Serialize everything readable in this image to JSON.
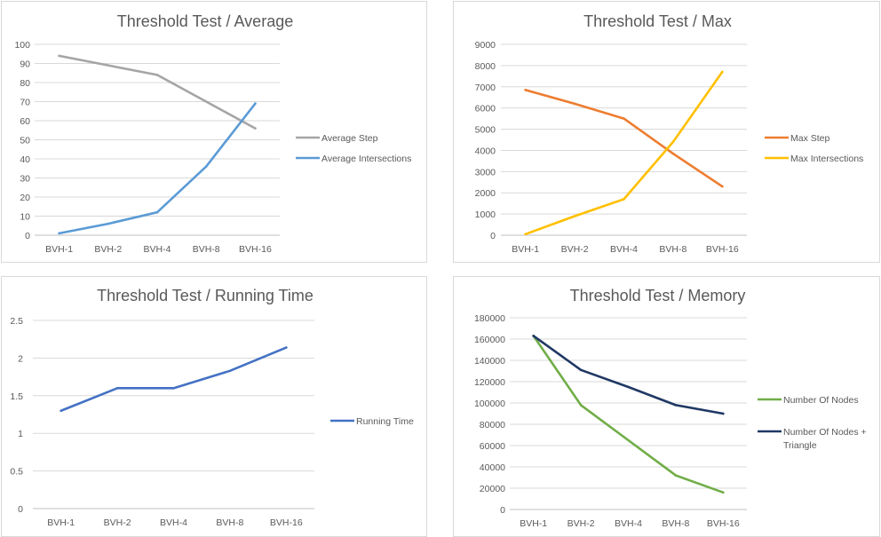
{
  "colors": {
    "grid": "#d9d9d9",
    "axis": "#bfbfbf",
    "text": "#595959"
  },
  "chart_data": [
    {
      "id": "average",
      "type": "line",
      "title": "Threshold Test / Average",
      "categories": [
        "BVH-1",
        "BVH-2",
        "BVH-4",
        "BVH-8",
        "BVH-16"
      ],
      "ylim": [
        0,
        100
      ],
      "yticks": [
        "0",
        "10",
        "20",
        "30",
        "40",
        "50",
        "60",
        "70",
        "80",
        "90",
        "100"
      ],
      "grid": true,
      "legend_position": "right",
      "series": [
        {
          "name": "Average Step",
          "color": "#a5a5a5",
          "values": [
            94,
            89,
            84,
            70,
            56
          ]
        },
        {
          "name": "Average Intersections",
          "color": "#5b9bd5",
          "values": [
            1,
            6,
            12,
            36,
            69
          ]
        }
      ]
    },
    {
      "id": "max",
      "type": "line",
      "title": "Threshold Test / Max",
      "categories": [
        "BVH-1",
        "BVH-2",
        "BVH-4",
        "BVH-8",
        "BVH-16"
      ],
      "ylim": [
        0,
        9000
      ],
      "yticks": [
        "0",
        "1000",
        "2000",
        "3000",
        "4000",
        "5000",
        "6000",
        "7000",
        "8000",
        "9000"
      ],
      "grid": true,
      "legend_position": "right",
      "series": [
        {
          "name": "Max Step",
          "color": "#ed7d31",
          "values": [
            6850,
            6200,
            5500,
            3850,
            2300
          ]
        },
        {
          "name": "Max Intersections",
          "color": "#ffc000",
          "values": [
            50,
            900,
            1700,
            4400,
            7700
          ]
        }
      ]
    },
    {
      "id": "running-time",
      "type": "line",
      "title": "Threshold Test / Running Time",
      "categories": [
        "BVH-1",
        "BVH-2",
        "BVH-4",
        "BVH-8",
        "BVH-16"
      ],
      "ylim": [
        0,
        2.5
      ],
      "yticks": [
        "0",
        "0.5",
        "1",
        "1.5",
        "2",
        "2.5"
      ],
      "grid": true,
      "legend_position": "right",
      "series": [
        {
          "name": "Running Time",
          "color": "#4472c4",
          "values": [
            1.3,
            1.6,
            1.6,
            1.83,
            2.14
          ]
        }
      ]
    },
    {
      "id": "memory",
      "type": "line",
      "title": "Threshold Test / Memory",
      "categories": [
        "BVH-1",
        "BVH-2",
        "BVH-4",
        "BVH-8",
        "BVH-16"
      ],
      "ylim": [
        0,
        180000
      ],
      "yticks": [
        "0",
        "20000",
        "40000",
        "60000",
        "80000",
        "100000",
        "120000",
        "140000",
        "160000",
        "180000"
      ],
      "grid": true,
      "legend_position": "right",
      "series": [
        {
          "name": "Number Of Nodes",
          "color": "#70ad47",
          "values": [
            163000,
            98000,
            65000,
            32000,
            16000
          ]
        },
        {
          "name": "Number Of Nodes + Triangle",
          "label_lines": [
            "Number Of Nodes +",
            "Triangle"
          ],
          "color": "#203864",
          "values": [
            163000,
            131000,
            115000,
            98000,
            90000
          ]
        }
      ]
    }
  ]
}
